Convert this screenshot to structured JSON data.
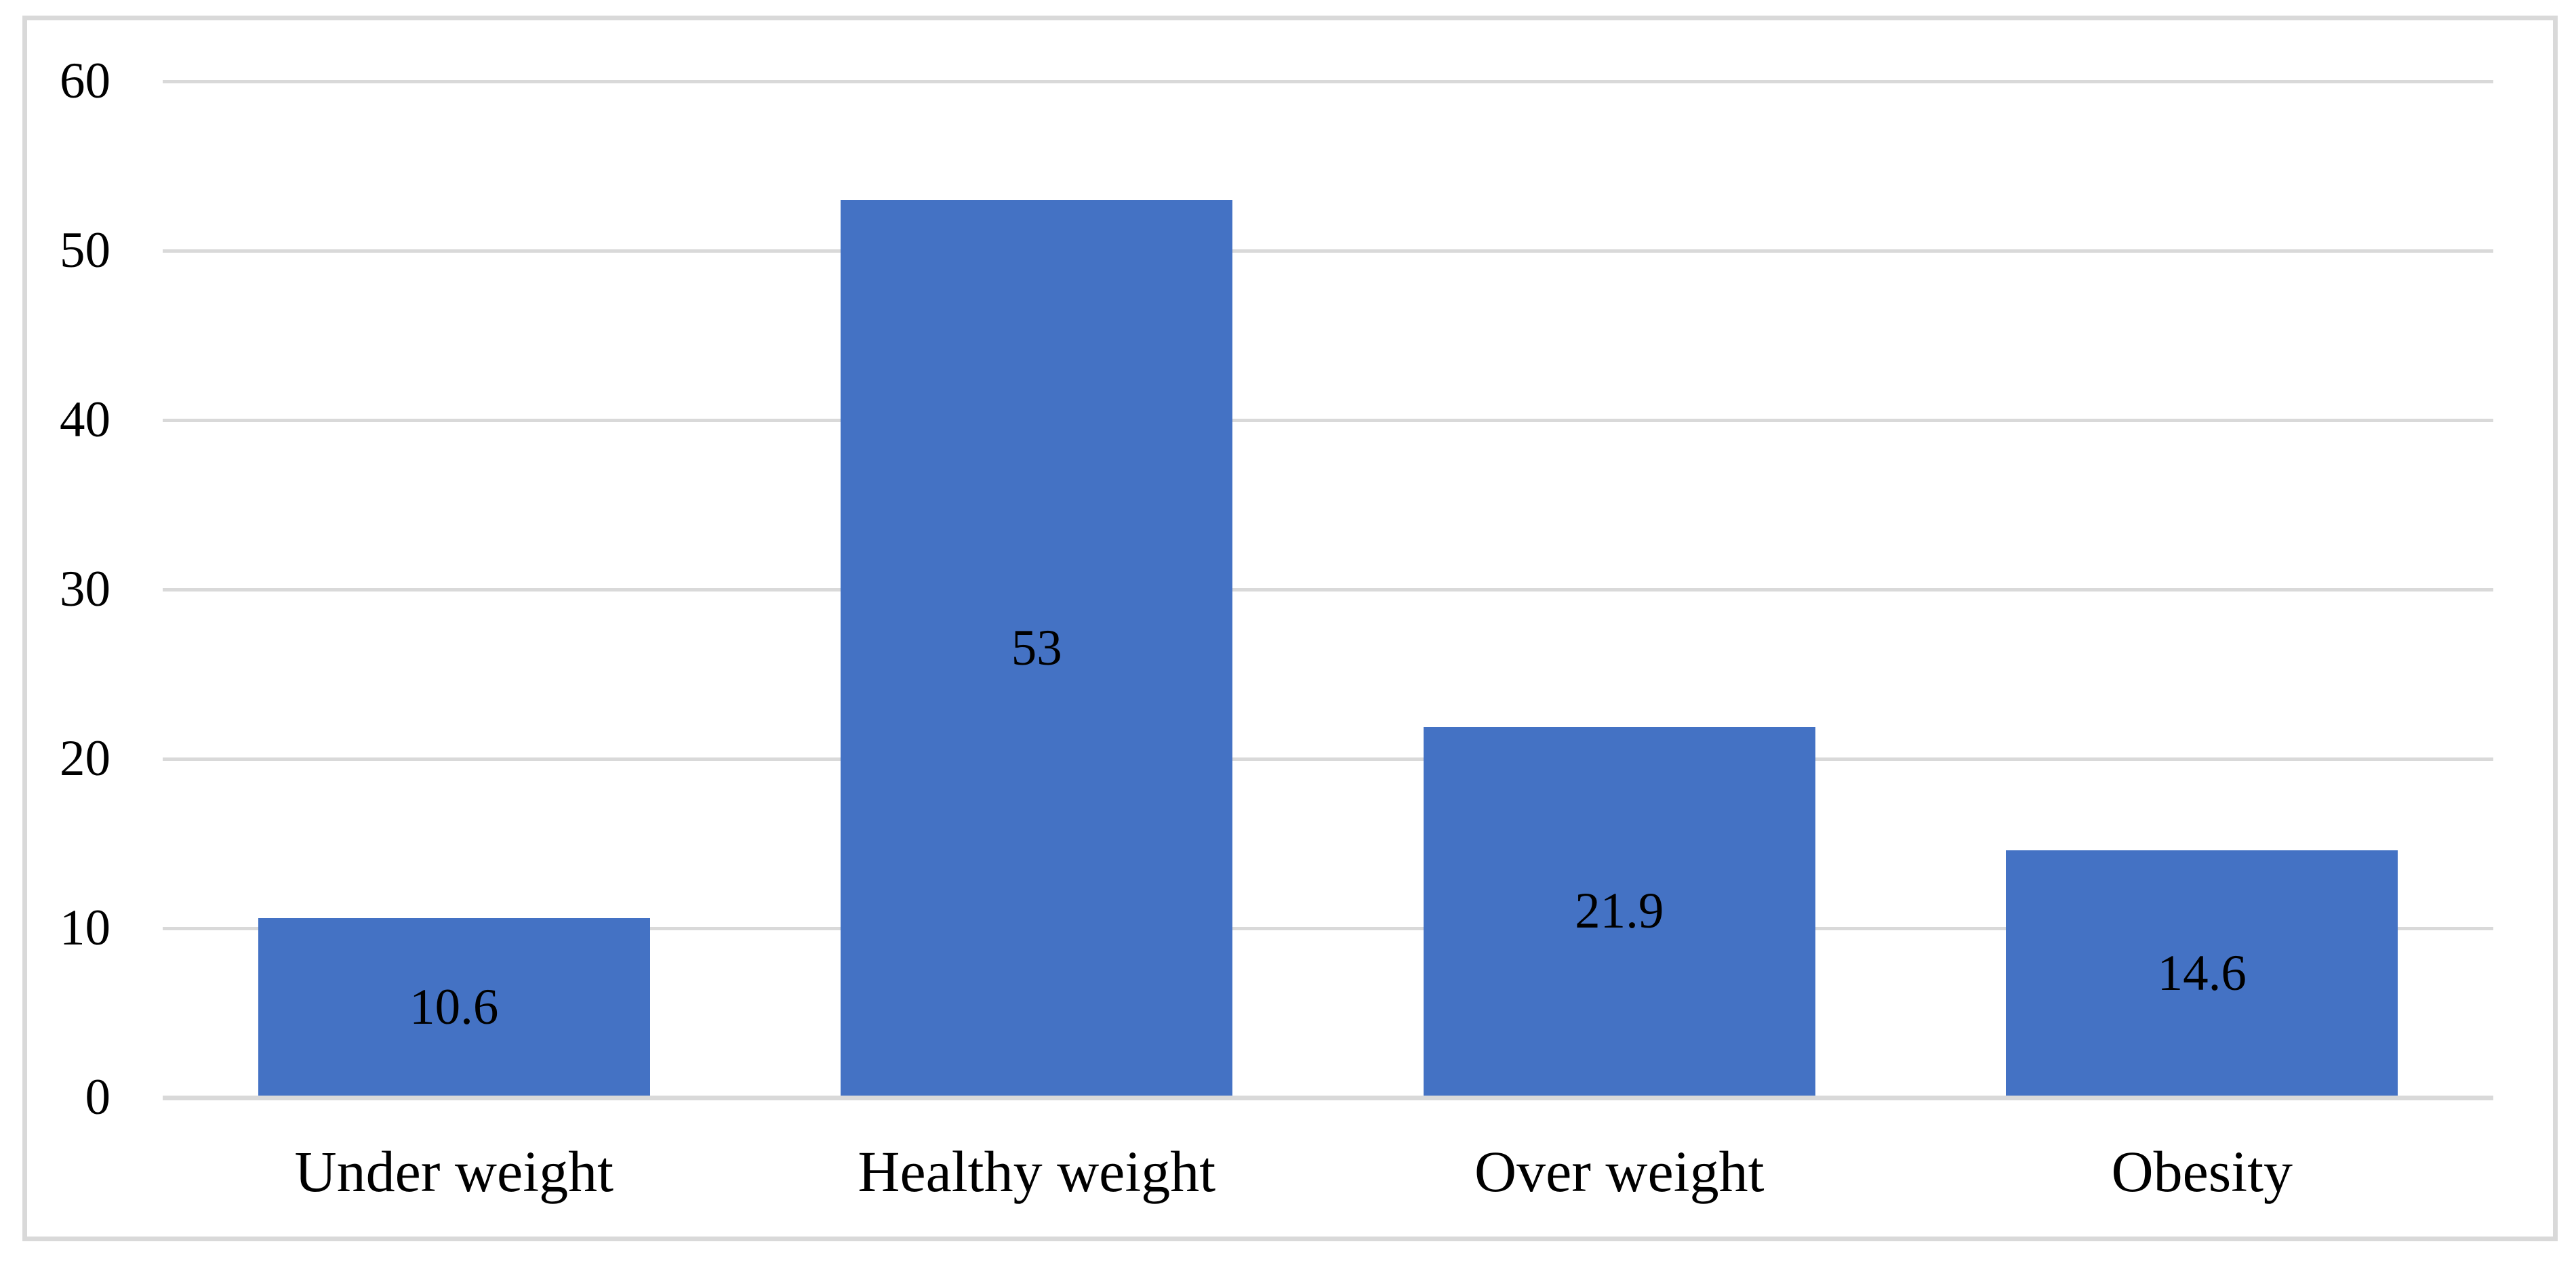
{
  "figure": {
    "background_color": "#FFFFFF",
    "border_color": "#D9D9D9",
    "text_color": "#000000"
  },
  "chart_data": {
    "type": "bar",
    "title": "",
    "xlabel": "",
    "ylabel": "",
    "categories": [
      "Under weight",
      "Healthy weight",
      "Over weight",
      "Obesity"
    ],
    "values": [
      10.6,
      53,
      21.9,
      14.6
    ],
    "data_labels": [
      "10.6",
      "53",
      "21.9",
      "14.6"
    ],
    "data_label_position": "center-inside-bar",
    "ylim": [
      0,
      60
    ],
    "yticks": [
      0,
      10,
      20,
      30,
      40,
      50,
      60
    ],
    "ytick_labels": [
      "0",
      "10",
      "20",
      "30",
      "40",
      "50",
      "60"
    ],
    "grid": "horizontal",
    "legend": "none",
    "bar_color": "#4472C4",
    "gridline_color": "#D9D9D9",
    "axis_line_color": "#D9D9D9"
  }
}
